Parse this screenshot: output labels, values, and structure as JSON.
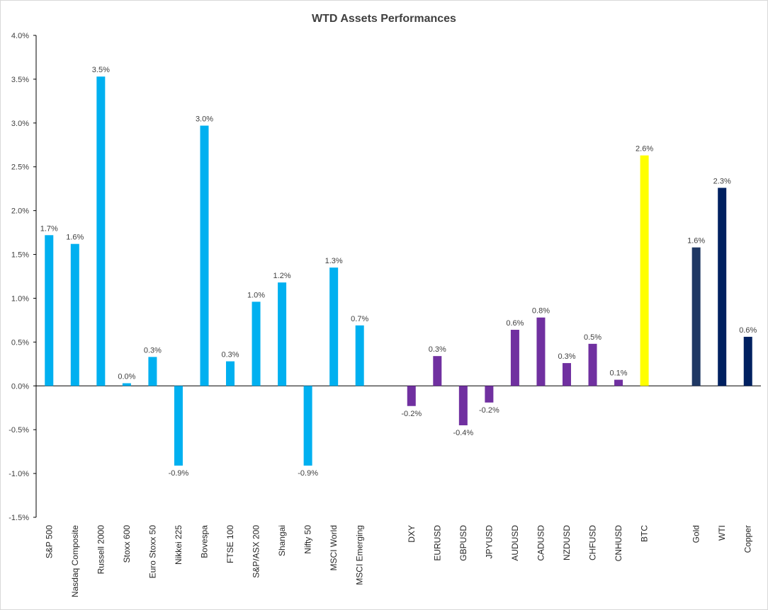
{
  "chart_data": {
    "type": "bar",
    "title": "WTD Assets Performances",
    "xlabel": "",
    "ylabel": "",
    "ylim": [
      -0.015,
      0.04
    ],
    "yticks": [
      {
        "value": 0.04,
        "label": "4.0%"
      },
      {
        "value": 0.035,
        "label": "3.5%"
      },
      {
        "value": 0.03,
        "label": "3.0%"
      },
      {
        "value": 0.025,
        "label": "2.5%"
      },
      {
        "value": 0.02,
        "label": "2.0%"
      },
      {
        "value": 0.015,
        "label": "1.5%"
      },
      {
        "value": 0.01,
        "label": "1.0%"
      },
      {
        "value": 0.005,
        "label": "0.5%"
      },
      {
        "value": 0.0,
        "label": "0.0%"
      },
      {
        "value": -0.005,
        "label": "-0.5%"
      },
      {
        "value": -0.01,
        "label": "-1.0%"
      },
      {
        "value": -0.015,
        "label": "-1.5%"
      }
    ],
    "grid": false,
    "colors": {
      "equity": "#00b0f0",
      "fx": "#7030a0",
      "crypto": "#ffff00",
      "gold": "#1f3864",
      "wti": "#002060",
      "copper": "#002060"
    },
    "bars": [
      {
        "category": "S&P 500",
        "value": 0.0172,
        "label": "1.7%",
        "color": "#00b0f0"
      },
      {
        "category": "Nasdaq Composite",
        "value": 0.0162,
        "label": "1.6%",
        "color": "#00b0f0"
      },
      {
        "category": "Russell 2000",
        "value": 0.0353,
        "label": "3.5%",
        "color": "#00b0f0"
      },
      {
        "category": "Stoxx 600",
        "value": 0.0003,
        "label": "0.0%",
        "color": "#00b0f0"
      },
      {
        "category": "Euro Stoxx 50",
        "value": 0.0033,
        "label": "0.3%",
        "color": "#00b0f0"
      },
      {
        "category": "Nikkei 225",
        "value": -0.0091,
        "label": "-0.9%",
        "color": "#00b0f0"
      },
      {
        "category": "Bovespa",
        "value": 0.0297,
        "label": "3.0%",
        "color": "#00b0f0"
      },
      {
        "category": "FTSE 100",
        "value": 0.0028,
        "label": "0.3%",
        "color": "#00b0f0"
      },
      {
        "category": "S&P/ASX 200",
        "value": 0.0096,
        "label": "1.0%",
        "color": "#00b0f0"
      },
      {
        "category": "Shangai",
        "value": 0.0118,
        "label": "1.2%",
        "color": "#00b0f0"
      },
      {
        "category": "Nifty 50",
        "value": -0.0091,
        "label": "-0.9%",
        "color": "#00b0f0"
      },
      {
        "category": "MSCI World",
        "value": 0.0135,
        "label": "1.3%",
        "color": "#00b0f0"
      },
      {
        "category": "MSCI Emerging",
        "value": 0.0069,
        "label": "0.7%",
        "color": "#00b0f0"
      },
      {
        "category": "",
        "value": null,
        "label": "",
        "color": ""
      },
      {
        "category": "DXY",
        "value": -0.0023,
        "label": "-0.2%",
        "color": "#7030a0"
      },
      {
        "category": "EURUSD",
        "value": 0.0034,
        "label": "0.3%",
        "color": "#7030a0"
      },
      {
        "category": "GBPUSD",
        "value": -0.0045,
        "label": "-0.4%",
        "color": "#7030a0"
      },
      {
        "category": "JPYUSD",
        "value": -0.0019,
        "label": "-0.2%",
        "color": "#7030a0"
      },
      {
        "category": "AUDUSD",
        "value": 0.0064,
        "label": "0.6%",
        "color": "#7030a0"
      },
      {
        "category": "CADUSD",
        "value": 0.0078,
        "label": "0.8%",
        "color": "#7030a0"
      },
      {
        "category": "NZDUSD",
        "value": 0.0026,
        "label": "0.3%",
        "color": "#7030a0"
      },
      {
        "category": "CHFUSD",
        "value": 0.0048,
        "label": "0.5%",
        "color": "#7030a0"
      },
      {
        "category": "CNHUSD",
        "value": 0.0007,
        "label": "0.1%",
        "color": "#7030a0"
      },
      {
        "category": "BTC",
        "value": 0.0263,
        "label": "2.6%",
        "color": "#ffff00"
      },
      {
        "category": "",
        "value": null,
        "label": "",
        "color": ""
      },
      {
        "category": "Gold",
        "value": 0.0158,
        "label": "1.6%",
        "color": "#1f3864"
      },
      {
        "category": "WTI",
        "value": 0.0226,
        "label": "2.3%",
        "color": "#002060"
      },
      {
        "category": "Copper",
        "value": 0.0056,
        "label": "0.6%",
        "color": "#002060"
      }
    ]
  }
}
